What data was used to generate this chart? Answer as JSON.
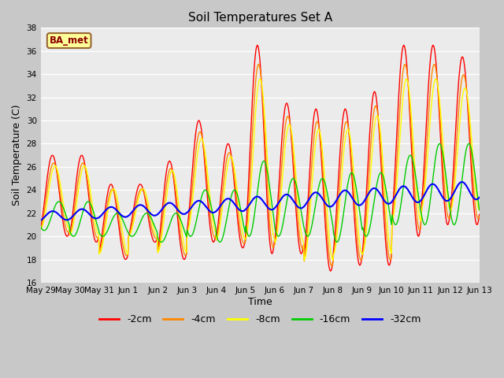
{
  "title": "Soil Temperatures Set A",
  "xlabel": "Time",
  "ylabel": "Soil Temperature (C)",
  "ylim": [
    16,
    38
  ],
  "yticks": [
    16,
    18,
    20,
    22,
    24,
    26,
    28,
    30,
    32,
    34,
    36,
    38
  ],
  "legend_label": "BA_met",
  "legend_bg": "#FFFF99",
  "legend_border": "#996633",
  "series_colors": {
    "-2cm": "#FF0000",
    "-4cm": "#FF8800",
    "-8cm": "#FFFF00",
    "-16cm": "#00CC00",
    "-32cm": "#0000FF"
  },
  "plot_bg": "#EBEBEB",
  "grid_color": "#FFFFFF",
  "time_range_days": 15,
  "tick_days": [
    0,
    1,
    2,
    3,
    4,
    5,
    6,
    7,
    8,
    9,
    10,
    11,
    12,
    13,
    14,
    15
  ],
  "tick_labels": [
    "May 29",
    "May 30",
    "May 31",
    "Jun 1",
    "Jun 2",
    "Jun 3",
    "Jun 4",
    "Jun 5",
    "Jun 6",
    "Jun 7",
    "Jun 8",
    "Jun 9",
    "Jun 10",
    "Jun 11",
    "Jun 12",
    "Jun 13"
  ]
}
